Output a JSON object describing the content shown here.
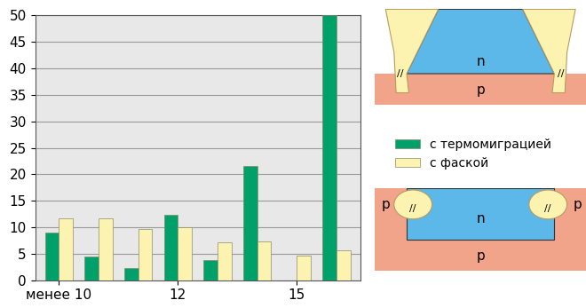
{
  "chart_data": {
    "type": "bar",
    "categories": [
      "менее 10",
      null,
      null,
      "12",
      null,
      null,
      "15",
      null
    ],
    "series": [
      {
        "name": "с термомиграцией",
        "color": "#00a06b",
        "values": [
          9,
          4.5,
          2.3,
          12.3,
          3.8,
          21.5,
          0,
          50
        ]
      },
      {
        "name": "с фаской",
        "color": "#fdf3b0",
        "values": [
          11.7,
          11.7,
          9.7,
          10,
          7.2,
          7.3,
          4.7,
          5.7
        ]
      }
    ],
    "ylim": [
      0,
      50
    ],
    "yticks": [
      0,
      5,
      10,
      15,
      20,
      25,
      30,
      35,
      40,
      45,
      50
    ],
    "grid": true,
    "legend": "center left"
  },
  "diagrams": [
    {
      "texts": [
        "n",
        "p",
        "//",
        "//"
      ]
    },
    {
      "texts": [
        "n",
        "p",
        "p",
        "p",
        "//",
        "//"
      ]
    }
  ]
}
